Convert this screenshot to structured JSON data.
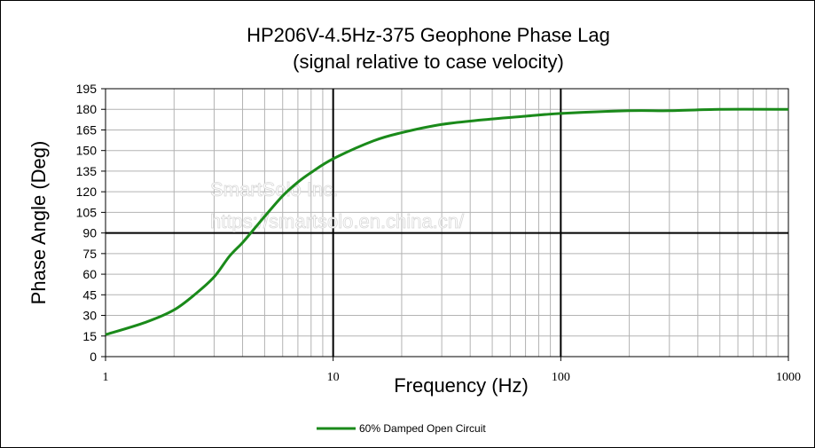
{
  "chart_data": {
    "type": "line",
    "title": "HP206V-4.5Hz-375 Geophone Phase Lag",
    "subtitle": "(signal relative to case velocity)",
    "xlabel": "Frequency (Hz)",
    "ylabel": "Phase Angle (Deg)",
    "x_scale": "log",
    "xlim": [
      1,
      1000
    ],
    "ylim": [
      0,
      195
    ],
    "x_ticks": [
      "1",
      "10",
      "100",
      "1000"
    ],
    "y_ticks": [
      "0",
      "15",
      "30",
      "45",
      "60",
      "75",
      "90",
      "105",
      "120",
      "135",
      "150",
      "165",
      "180",
      "195"
    ],
    "grid": true,
    "legend_position": "bottom",
    "series": [
      {
        "name": "60% Damped Open Circuit",
        "color": "#1a8a1a",
        "x": [
          1,
          1.5,
          2,
          2.5,
          3,
          3.5,
          4,
          4.5,
          5,
          6,
          7,
          8,
          10,
          15,
          20,
          30,
          50,
          70,
          100,
          200,
          300,
          500,
          1000
        ],
        "y": [
          16,
          25,
          34,
          46,
          58,
          73,
          83,
          93,
          102,
          117,
          127,
          134,
          144,
          157,
          163,
          169,
          173,
          175,
          177,
          179,
          179,
          180,
          180
        ]
      }
    ]
  },
  "watermark": {
    "line1": "SmartSolo Inc.",
    "line2": "https://smartsolo.en.china.cn/"
  }
}
